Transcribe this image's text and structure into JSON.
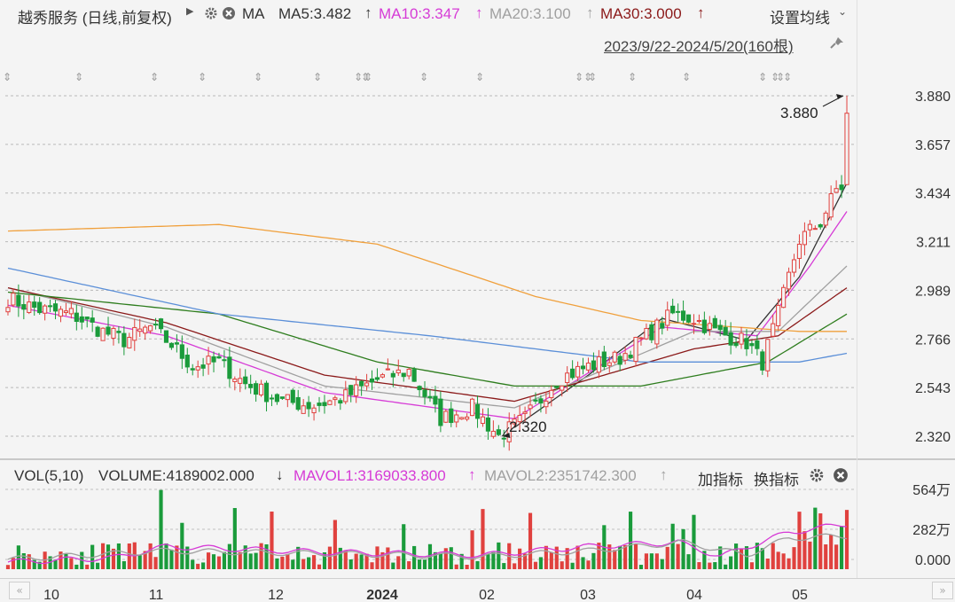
{
  "header": {
    "stock_name": "越秀服务 (日线,前复权)",
    "arrow_icon": "triangle-right-icon",
    "ma_label": "MA",
    "ma5": "MA5:3.482",
    "ma10": "MA10:3.347",
    "ma20": "MA20:3.100",
    "ma30": "MA30:3.000",
    "settings": "设置均线",
    "range": "2023/9/22-2024/5/20(160根)"
  },
  "vol_header": {
    "vol": "VOL(5,10)",
    "volume": "VOLUME:4189002.000",
    "mavol1": "MAVOL1:3169033.800",
    "mavol2": "MAVOL2:2351742.300",
    "add_indicator": "加指标",
    "switch_indicator": "换指标"
  },
  "annotations": {
    "high": "3.880",
    "low": "2.320"
  },
  "colors": {
    "up": "#e0413e",
    "down": "#1a9b3b",
    "ma5": "#333333",
    "ma10": "#d63bd6",
    "ma20": "#a0a0a0",
    "ma30": "#8b1a1a",
    "ma60": "#2e7d1e",
    "ma120": "#5b8fd8",
    "ma250": "#f0a03c",
    "mavol1": "#d63bd6",
    "mavol2": "#a0a0a0"
  },
  "chart_data": {
    "type": "candlestick",
    "ylim": [
      2.28,
      3.9
    ],
    "y_ticks": [
      "3.880",
      "3.657",
      "3.434",
      "3.211",
      "2.989",
      "2.766",
      "2.543",
      "2.320"
    ],
    "x_ticks": [
      "10",
      "11",
      "12",
      "2024",
      "02",
      "03",
      "04",
      "05"
    ],
    "vol_ticks": [
      "564万",
      "282万",
      "0.000"
    ],
    "vol_max": 5640000,
    "num_bars": 160,
    "anchors": [
      [
        0,
        2.95
      ],
      [
        6,
        2.9
      ],
      [
        12,
        2.88
      ],
      [
        18,
        2.8
      ],
      [
        22,
        2.76
      ],
      [
        27,
        2.82
      ],
      [
        31,
        2.74
      ],
      [
        35,
        2.64
      ],
      [
        40,
        2.66
      ],
      [
        45,
        2.56
      ],
      [
        52,
        2.48
      ],
      [
        58,
        2.46
      ],
      [
        64,
        2.5
      ],
      [
        70,
        2.58
      ],
      [
        76,
        2.62
      ],
      [
        82,
        2.4
      ],
      [
        88,
        2.45
      ],
      [
        93,
        2.32
      ],
      [
        98,
        2.4
      ],
      [
        104,
        2.58
      ],
      [
        110,
        2.64
      ],
      [
        116,
        2.68
      ],
      [
        121,
        2.78
      ],
      [
        126,
        2.88
      ],
      [
        130,
        2.86
      ],
      [
        134,
        2.8
      ],
      [
        140,
        2.75
      ],
      [
        143,
        2.66
      ],
      [
        146,
        2.88
      ],
      [
        150,
        3.22
      ],
      [
        154,
        3.3
      ],
      [
        157,
        3.45
      ],
      [
        159,
        3.78
      ]
    ],
    "ma_lines": {
      "ma5": [
        [
          96,
          2.36
        ],
        [
          110,
          2.6
        ],
        [
          124,
          2.86
        ],
        [
          140,
          2.76
        ],
        [
          150,
          3.05
        ],
        [
          159,
          3.48
        ]
      ],
      "ma10": [
        [
          0,
          2.92
        ],
        [
          30,
          2.78
        ],
        [
          60,
          2.52
        ],
        [
          96,
          2.4
        ],
        [
          124,
          2.82
        ],
        [
          142,
          2.78
        ],
        [
          152,
          3.1
        ],
        [
          159,
          3.35
        ]
      ],
      "ma20": [
        [
          0,
          3.0
        ],
        [
          30,
          2.82
        ],
        [
          60,
          2.55
        ],
        [
          96,
          2.45
        ],
        [
          130,
          2.8
        ],
        [
          146,
          2.8
        ],
        [
          159,
          3.1
        ]
      ],
      "ma30": [
        [
          0,
          3.0
        ],
        [
          30,
          2.84
        ],
        [
          60,
          2.6
        ],
        [
          96,
          2.48
        ],
        [
          130,
          2.72
        ],
        [
          146,
          2.78
        ],
        [
          159,
          3.0
        ]
      ],
      "ma60": [
        [
          0,
          2.98
        ],
        [
          40,
          2.88
        ],
        [
          70,
          2.66
        ],
        [
          96,
          2.55
        ],
        [
          120,
          2.55
        ],
        [
          144,
          2.66
        ],
        [
          159,
          2.88
        ]
      ],
      "ma120": [
        [
          0,
          3.09
        ],
        [
          40,
          2.88
        ],
        [
          80,
          2.78
        ],
        [
          100,
          2.72
        ],
        [
          120,
          2.66
        ],
        [
          150,
          2.66
        ],
        [
          159,
          2.7
        ]
      ],
      "ma250": [
        [
          0,
          3.26
        ],
        [
          40,
          3.29
        ],
        [
          70,
          3.2
        ],
        [
          100,
          2.96
        ],
        [
          120,
          2.85
        ],
        [
          150,
          2.8
        ],
        [
          159,
          2.8
        ]
      ]
    },
    "mavol_lines": {
      "mavol1": [
        [
          0,
          0.5
        ],
        [
          20,
          0.8
        ],
        [
          30,
          1.6
        ],
        [
          60,
          1.2
        ],
        [
          90,
          1.0
        ],
        [
          110,
          1.6
        ],
        [
          127,
          1.9
        ],
        [
          135,
          0.9
        ],
        [
          148,
          2.6
        ],
        [
          159,
          3.2
        ]
      ],
      "mavol2": [
        [
          0,
          0.7
        ],
        [
          30,
          1.3
        ],
        [
          60,
          1.1
        ],
        [
          90,
          0.9
        ],
        [
          110,
          1.3
        ],
        [
          128,
          1.9
        ],
        [
          140,
          1.0
        ],
        [
          148,
          2.2
        ],
        [
          159,
          2.35
        ]
      ]
    }
  }
}
